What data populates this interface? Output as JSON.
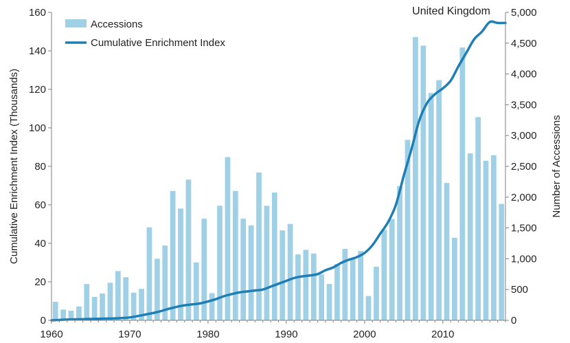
{
  "chart_data": {
    "type": "bar+line",
    "title": "United Kingdom",
    "xlabel": "",
    "ylabel_left": "Cumulative Enrichment Index (Thousands)",
    "ylabel_right": "Number of Accessions",
    "xlim": [
      1960,
      2018
    ],
    "ylim_left": [
      0,
      160
    ],
    "ylim_right": [
      0,
      5000
    ],
    "x_ticks": [
      "1960",
      "1970",
      "1980",
      "1990",
      "2000",
      "2010"
    ],
    "y_left_ticks": [
      "0",
      "20",
      "40",
      "60",
      "80",
      "100",
      "120",
      "140",
      "160"
    ],
    "y_right_ticks": [
      "0",
      "500",
      "1,000",
      "1,500",
      "2,000",
      "2,500",
      "3,000",
      "3,500",
      "4,000",
      "4,500",
      "5,000"
    ],
    "legend": {
      "placement": "top-left",
      "entries": [
        "Accessions",
        "Cumulative Enrichment Index"
      ]
    },
    "grid": false,
    "colors": {
      "bars": "#9fd0e6",
      "line": "#1f7eb4",
      "axis": "#7f7f7f"
    },
    "series": [
      {
        "name": "Accessions",
        "kind": "bar",
        "axis": "right",
        "x": [
          1960,
          1961,
          1962,
          1963,
          1964,
          1965,
          1966,
          1967,
          1968,
          1969,
          1970,
          1971,
          1972,
          1973,
          1974,
          1975,
          1976,
          1977,
          1978,
          1979,
          1980,
          1981,
          1982,
          1983,
          1984,
          1985,
          1986,
          1987,
          1988,
          1989,
          1990,
          1991,
          1992,
          1993,
          1994,
          1995,
          1996,
          1997,
          1998,
          1999,
          2000,
          2001,
          2002,
          2003,
          2004,
          2005,
          2006,
          2007,
          2008,
          2009,
          2010,
          2011,
          2012,
          2013,
          2014,
          2015,
          2016,
          2017
        ],
        "values": [
          300,
          175,
          155,
          225,
          590,
          380,
          435,
          610,
          800,
          700,
          450,
          510,
          1510,
          1000,
          1215,
          2100,
          1815,
          2285,
          940,
          1650,
          440,
          1860,
          2650,
          2100,
          1650,
          1540,
          2400,
          1860,
          2075,
          1460,
          1565,
          1070,
          1145,
          1085,
          745,
          590,
          915,
          1160,
          1015,
          1125,
          395,
          870,
          1470,
          1645,
          2180,
          2930,
          4600,
          4460,
          3690,
          3900,
          2230,
          1340,
          4430,
          2710,
          3300,
          2590,
          2680,
          1890
        ]
      },
      {
        "name": "Cumulative Enrichment Index",
        "kind": "line",
        "axis": "left",
        "x": [
          1960,
          1961,
          1962,
          1963,
          1964,
          1965,
          1966,
          1967,
          1968,
          1969,
          1970,
          1971,
          1972,
          1973,
          1974,
          1975,
          1976,
          1977,
          1978,
          1979,
          1980,
          1981,
          1982,
          1983,
          1984,
          1985,
          1986,
          1987,
          1988,
          1989,
          1990,
          1991,
          1992,
          1993,
          1994,
          1995,
          1996,
          1997,
          1998,
          1999,
          2000,
          2001,
          2002,
          2003,
          2004,
          2005,
          2006,
          2007,
          2008,
          2009,
          2010,
          2011,
          2012,
          2013,
          2014,
          2015,
          2016,
          2017,
          2018
        ],
        "values": [
          0,
          0.2,
          0.4,
          0.5,
          0.6,
          0.7,
          0.8,
          0.9,
          1.0,
          1.2,
          1.5,
          2.2,
          3.0,
          3.8,
          4.8,
          6.0,
          7.0,
          7.8,
          8.3,
          8.8,
          9.8,
          11.0,
          12.5,
          13.6,
          14.5,
          15.0,
          15.5,
          16.0,
          17.5,
          19.0,
          20.5,
          22.0,
          22.8,
          23.3,
          24.0,
          26.0,
          27.5,
          29.8,
          31.5,
          32.8,
          35.0,
          39.0,
          45.0,
          51.0,
          60.0,
          75.0,
          89.0,
          104.0,
          113.0,
          117.5,
          120.5,
          124.5,
          132.0,
          139.0,
          146.0,
          150.0,
          155.0,
          154.5,
          154.5
        ]
      }
    ]
  }
}
